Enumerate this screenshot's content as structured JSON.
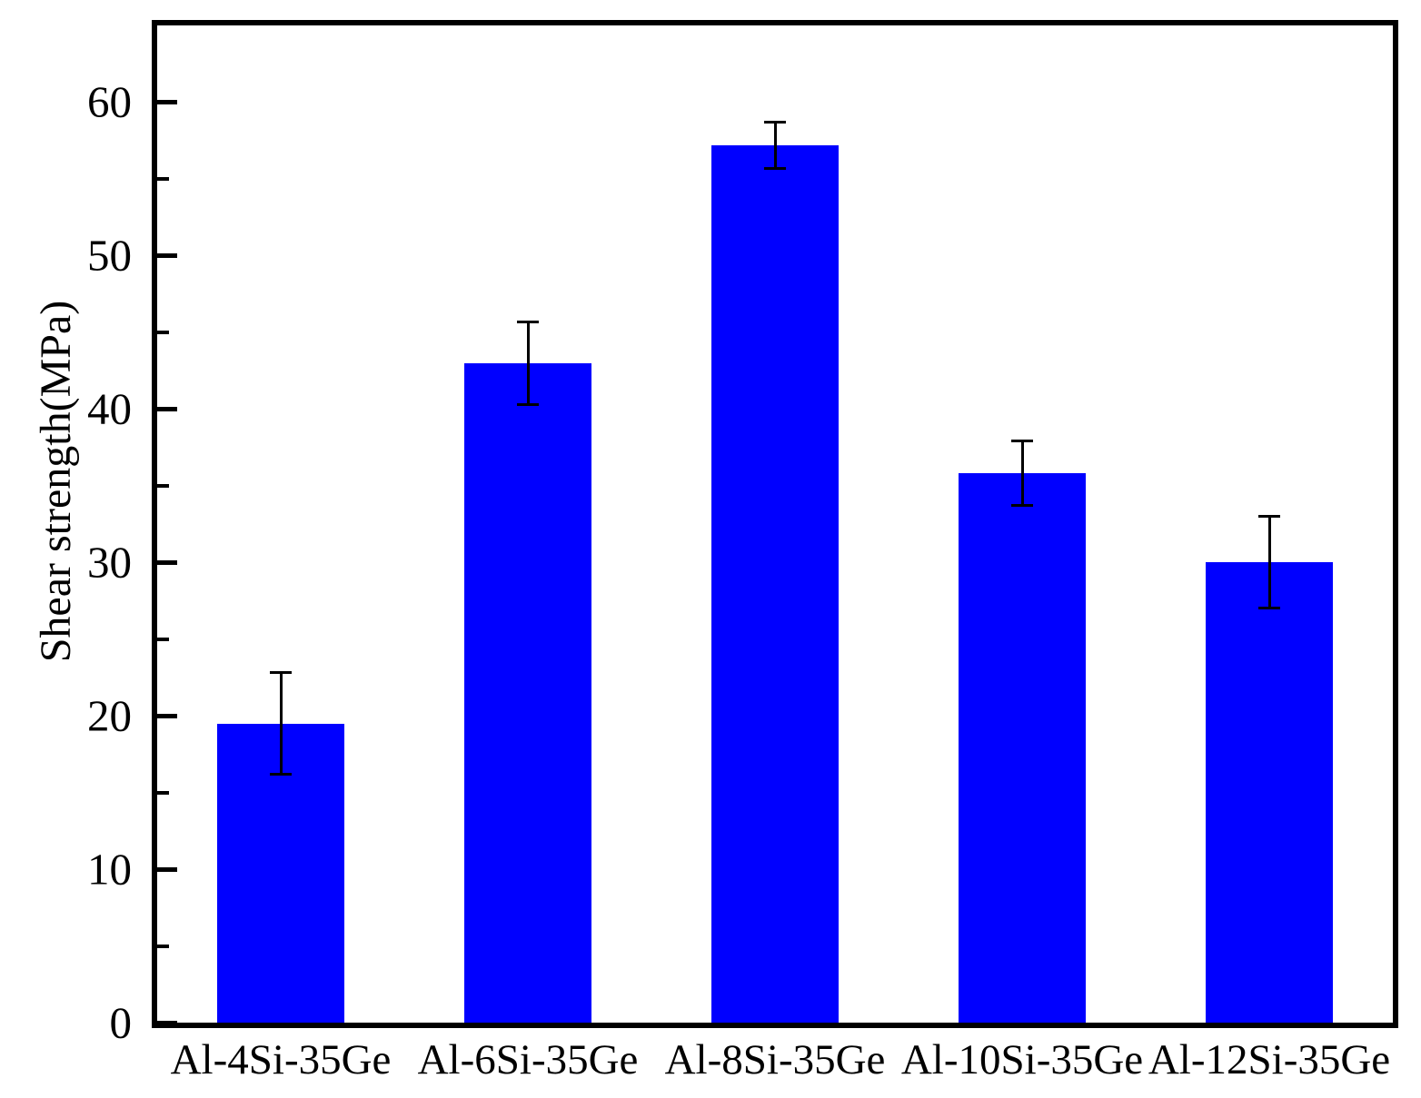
{
  "chart_data": {
    "type": "bar",
    "title": "",
    "xlabel": "",
    "ylabel": "Shear strength(MPa)",
    "categories": [
      "Al-4Si-35Ge",
      "Al-6Si-35Ge",
      "Al-8Si-35Ge",
      "Al-10Si-35Ge",
      "Al-12Si-35Ge"
    ],
    "values": [
      19.5,
      43.0,
      57.2,
      35.8,
      30.0
    ],
    "error_bars": [
      3.3,
      2.7,
      1.5,
      2.1,
      3.0
    ],
    "ylim": [
      0,
      65
    ],
    "y_major_ticks": [
      0,
      10,
      20,
      30,
      40,
      50,
      60
    ],
    "y_minor_ticks": [
      5,
      15,
      25,
      35,
      45,
      55
    ],
    "bar_color": "#0000ff",
    "axis_color": "#000000",
    "grid": false,
    "legend": false
  }
}
